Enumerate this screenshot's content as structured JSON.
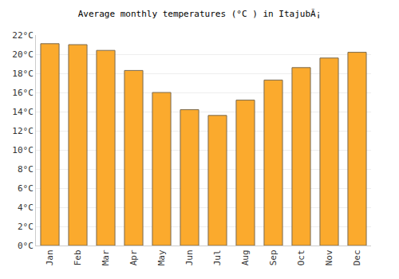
{
  "chart_data": {
    "type": "bar",
    "title": "Average monthly temperatures (°C ) in ItajubÃ¡",
    "categories": [
      "Jan",
      "Feb",
      "Mar",
      "Apr",
      "May",
      "Jun",
      "Jul",
      "Aug",
      "Sep",
      "Oct",
      "Nov",
      "Dec"
    ],
    "values": [
      21.1,
      21.0,
      20.4,
      18.3,
      16.0,
      14.2,
      13.6,
      15.2,
      17.3,
      18.6,
      19.6,
      20.2
    ],
    "color": "#fbaa2d",
    "ylim": [
      0,
      22
    ],
    "yticks": [
      {
        "value": 0,
        "label": "0°C"
      },
      {
        "value": 2,
        "label": "2°C"
      },
      {
        "value": 4,
        "label": "4°C"
      },
      {
        "value": 6,
        "label": "6°C"
      },
      {
        "value": 8,
        "label": "8°C"
      },
      {
        "value": 10,
        "label": "10°C"
      },
      {
        "value": 12,
        "label": "12°C"
      },
      {
        "value": 14,
        "label": "14°C"
      },
      {
        "value": 16,
        "label": "16°C"
      },
      {
        "value": 18,
        "label": "18°C"
      },
      {
        "value": 20,
        "label": "20°C"
      },
      {
        "value": 22,
        "label": "22°C"
      }
    ],
    "grid": true
  }
}
